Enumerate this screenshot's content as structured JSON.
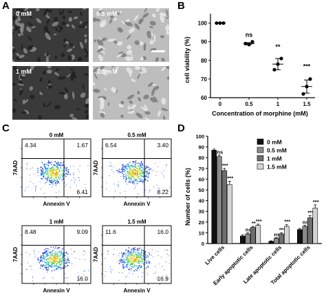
{
  "panel_letters": {
    "a": "A",
    "b": "B",
    "c": "C",
    "d": "D"
  },
  "panel_a": {
    "images": [
      {
        "label": "0 mM",
        "tone": "dark"
      },
      {
        "label": "0.5 mM",
        "tone": "light"
      },
      {
        "label": "1 mM",
        "tone": "dark"
      },
      {
        "label": "1.5 mM",
        "tone": "light"
      }
    ]
  },
  "panel_c": {
    "xlabel": "Annexin V",
    "ylabel": "7AAD",
    "plots": [
      {
        "title": "0 mM",
        "q_ul": "4.34",
        "q_ur": "1.67",
        "q_lr": "6.41"
      },
      {
        "title": "0.5 mM",
        "q_ul": "6.54",
        "q_ur": "3.40",
        "q_lr": "8.22"
      },
      {
        "title": "1 mM",
        "q_ul": "8.48",
        "q_ur": "9.09",
        "q_lr": "16.0"
      },
      {
        "title": "1.5 mM",
        "q_ul": "11.6",
        "q_ur": "16.0",
        "q_lr": "16.9"
      }
    ]
  },
  "chart_data": [
    {
      "type": "scatter",
      "panel": "B",
      "xlabel": "Concentration of morphine (mM)",
      "ylabel": "cell viability (%)",
      "categories": [
        "0",
        "0.5",
        "1",
        "1.5"
      ],
      "ylim": [
        60,
        105
      ],
      "yticks": [
        60,
        70,
        80,
        90,
        100
      ],
      "points": [
        [
          100,
          100,
          100
        ],
        [
          89,
          88.5,
          90
        ],
        [
          75,
          78,
          81
        ],
        [
          62,
          66,
          70
        ]
      ],
      "means": [
        100,
        89,
        78,
        66
      ],
      "errors": [
        0,
        0.5,
        3,
        3.5
      ],
      "significance": [
        "",
        "ns",
        "**",
        "***"
      ]
    },
    {
      "type": "bar",
      "panel": "D",
      "ylabel": "Number of cells (%)",
      "categories": [
        "Live cells",
        "Early apoptotic cells",
        "Late apoptotic cells",
        "Total apoptotic cells"
      ],
      "ylim": [
        0,
        100
      ],
      "yticks": [
        0,
        10,
        20,
        30,
        40,
        50,
        60,
        70,
        80,
        90,
        100
      ],
      "legend_position": "top-right",
      "series": [
        {
          "name": "0 mM",
          "color": "#111111",
          "values": [
            87,
            7,
            2,
            13
          ],
          "errors": [
            1,
            1,
            0.5,
            1
          ],
          "sig": [
            "",
            "",
            "",
            ""
          ]
        },
        {
          "name": "0.5 mM",
          "color": "#8a8a8a",
          "values": [
            81,
            9,
            5,
            16
          ],
          "errors": [
            1.5,
            1,
            0.5,
            1
          ],
          "sig": [
            "ns",
            "ns",
            "ns",
            "ns"
          ]
        },
        {
          "name": "1 mM",
          "color": "#6e6e6e",
          "values": [
            68,
            15,
            9,
            24
          ],
          "errors": [
            2,
            1,
            1,
            2
          ],
          "sig": [
            "***",
            "**",
            "***",
            "***"
          ]
        },
        {
          "name": "1.5 mM",
          "color": "#d4d4d4",
          "values": [
            55,
            17,
            16,
            33
          ],
          "errors": [
            3,
            1,
            1.5,
            3
          ],
          "sig": [
            "***",
            "***",
            "***",
            "***"
          ]
        }
      ]
    }
  ]
}
